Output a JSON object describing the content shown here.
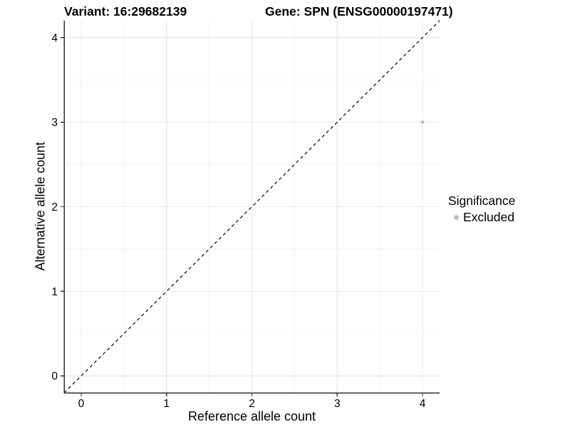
{
  "header": {
    "variant_title": "Variant: 16:29682139",
    "gene_title": "Gene: SPN (ENSG00000197471)"
  },
  "legend": {
    "title": "Significance",
    "items": [
      {
        "label": "Excluded",
        "color": "#bebebe",
        "marker": "circle-icon"
      }
    ]
  },
  "chart_data": {
    "type": "scatter",
    "title_left": "Variant: 16:29682139",
    "title_right": "Gene: SPN (ENSG00000197471)",
    "xlabel": "Reference allele count",
    "ylabel": "Alternative allele count",
    "xlim": [
      -0.2,
      4.2
    ],
    "ylim": [
      -0.2,
      4.2
    ],
    "xticks": [
      0,
      1,
      2,
      3,
      4
    ],
    "yticks": [
      0,
      1,
      2,
      3,
      4
    ],
    "xticks_minor": [
      0.5,
      1.5,
      2.5,
      3.5
    ],
    "yticks_minor": [
      0.5,
      1.5,
      2.5,
      3.5
    ],
    "grid": true,
    "legend_position": "right",
    "series": [
      {
        "name": "Excluded",
        "color": "#bebebe",
        "points": [
          {
            "x": 4,
            "y": 3
          }
        ]
      }
    ],
    "reference_line": {
      "kind": "identity",
      "slope": 1,
      "intercept": 0,
      "style": "dashed",
      "color": "#000000"
    },
    "colors": {
      "background": "#ffffff",
      "grid_major": "#e9e9e9",
      "grid_minor": "#f2f2f2",
      "axis_line": "#333333",
      "tick_text": "#000000",
      "point": "#bebebe"
    }
  }
}
